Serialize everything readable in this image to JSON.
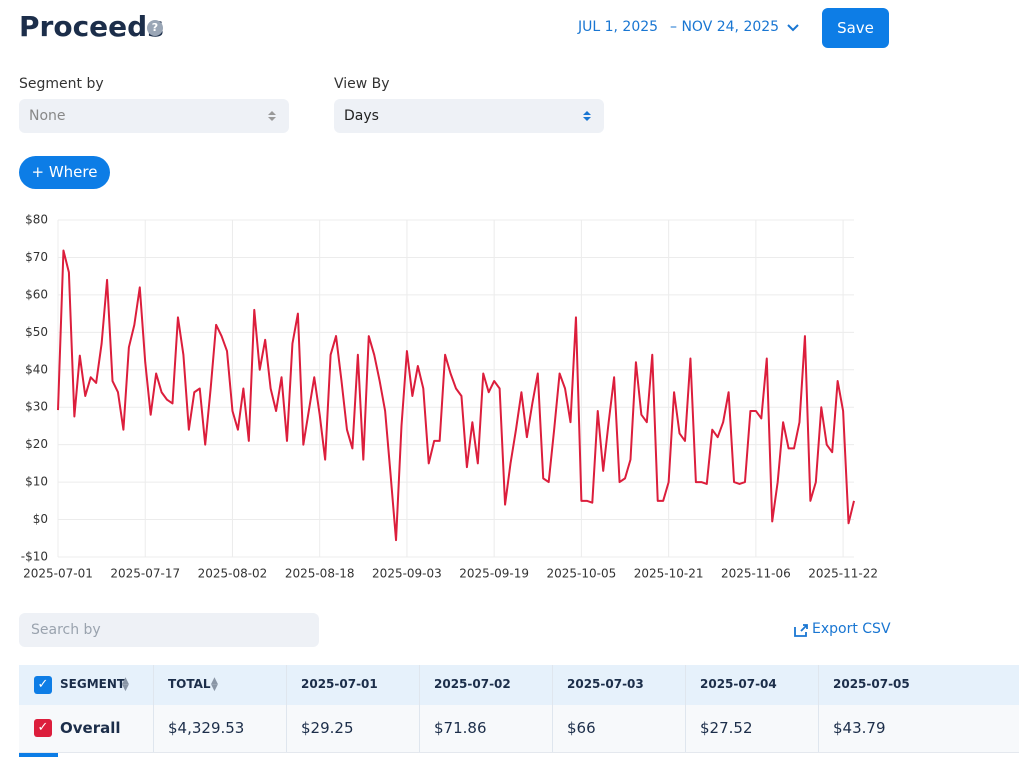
{
  "header": {
    "title": "Proceeds",
    "date_start": "JUL 1, 2025",
    "date_end": "– NOV 24, 2025",
    "save": "Save"
  },
  "filters": {
    "segment_label": "Segment by",
    "segment_value": "None",
    "view_label": "View By",
    "view_value": "Days",
    "where": "+ Where"
  },
  "chart_data": {
    "type": "line",
    "color": "#dc1e3c",
    "grid": true,
    "x": [
      "2025-07-01",
      "2025-07-02",
      "2025-07-03",
      "2025-07-04",
      "2025-07-05",
      "2025-07-06",
      "2025-07-07",
      "2025-07-08",
      "2025-07-09",
      "2025-07-10",
      "2025-07-11",
      "2025-07-12",
      "2025-07-13",
      "2025-07-14",
      "2025-07-15",
      "2025-07-16",
      "2025-07-17",
      "2025-07-18",
      "2025-07-19",
      "2025-07-20",
      "2025-07-21",
      "2025-07-22",
      "2025-07-23",
      "2025-07-24",
      "2025-07-25",
      "2025-07-26",
      "2025-07-27",
      "2025-07-28",
      "2025-07-29",
      "2025-07-30",
      "2025-07-31",
      "2025-08-01",
      "2025-08-02",
      "2025-08-03",
      "2025-08-04",
      "2025-08-05",
      "2025-08-06",
      "2025-08-07",
      "2025-08-08",
      "2025-08-09",
      "2025-08-10",
      "2025-08-11",
      "2025-08-12",
      "2025-08-13",
      "2025-08-14",
      "2025-08-15",
      "2025-08-16",
      "2025-08-17",
      "2025-08-18",
      "2025-08-19",
      "2025-08-20",
      "2025-08-21",
      "2025-08-22",
      "2025-08-23",
      "2025-08-24",
      "2025-08-25",
      "2025-08-26",
      "2025-08-27",
      "2025-08-28",
      "2025-08-29",
      "2025-08-30",
      "2025-08-31",
      "2025-09-01",
      "2025-09-02",
      "2025-09-03",
      "2025-09-04",
      "2025-09-05",
      "2025-09-06",
      "2025-09-07",
      "2025-09-08",
      "2025-09-09",
      "2025-09-10",
      "2025-09-11",
      "2025-09-12",
      "2025-09-13",
      "2025-09-14",
      "2025-09-15",
      "2025-09-16",
      "2025-09-17",
      "2025-09-18",
      "2025-09-19",
      "2025-09-20",
      "2025-09-21",
      "2025-09-22",
      "2025-09-23",
      "2025-09-24",
      "2025-09-25",
      "2025-09-26",
      "2025-09-27",
      "2025-09-28",
      "2025-09-29",
      "2025-09-30",
      "2025-10-01",
      "2025-10-02",
      "2025-10-03",
      "2025-10-04",
      "2025-10-05",
      "2025-10-06",
      "2025-10-07",
      "2025-10-08",
      "2025-10-09",
      "2025-10-10",
      "2025-10-11",
      "2025-10-12",
      "2025-10-13",
      "2025-10-14",
      "2025-10-15",
      "2025-10-16",
      "2025-10-17",
      "2025-10-18",
      "2025-10-19",
      "2025-10-20",
      "2025-10-21",
      "2025-10-22",
      "2025-10-23",
      "2025-10-24",
      "2025-10-25",
      "2025-10-26",
      "2025-10-27",
      "2025-10-28",
      "2025-10-29",
      "2025-10-30",
      "2025-10-31",
      "2025-11-01",
      "2025-11-02",
      "2025-11-03",
      "2025-11-04",
      "2025-11-05",
      "2025-11-06",
      "2025-11-07",
      "2025-11-08",
      "2025-11-09",
      "2025-11-10",
      "2025-11-11",
      "2025-11-12",
      "2025-11-13",
      "2025-11-14",
      "2025-11-15",
      "2025-11-16",
      "2025-11-17",
      "2025-11-18",
      "2025-11-19",
      "2025-11-20",
      "2025-11-21",
      "2025-11-22",
      "2025-11-23",
      "2025-11-24"
    ],
    "values": [
      29.25,
      71.86,
      66,
      27.52,
      43.79,
      33,
      38,
      36.5,
      47,
      64,
      37,
      34,
      24,
      46,
      52,
      62,
      42,
      28,
      39,
      34,
      32,
      31,
      54,
      44,
      24,
      34,
      35,
      20,
      35,
      52,
      49,
      45,
      29,
      24,
      35,
      21,
      56,
      40,
      48,
      35,
      29,
      38,
      21,
      47,
      55,
      20,
      29,
      38,
      28,
      16,
      44,
      49,
      37,
      24,
      19,
      44,
      16,
      49,
      44,
      37,
      29,
      12,
      -5.5,
      25,
      45,
      33,
      41,
      35,
      15,
      21,
      21,
      44,
      39,
      35,
      33,
      14,
      26,
      15,
      39,
      34,
      37,
      35,
      4,
      15,
      24,
      34,
      22,
      31,
      39,
      11,
      10,
      24,
      39,
      35,
      26,
      54,
      5,
      5,
      4.5,
      29,
      13,
      26,
      38,
      10,
      11,
      16,
      42,
      28,
      26,
      44,
      5,
      5,
      10,
      34,
      23,
      21,
      43,
      10,
      10,
      9.5,
      24,
      22,
      26,
      34,
      10,
      9.5,
      10,
      29,
      29,
      27,
      43,
      -0.5,
      10,
      26,
      19,
      19,
      26,
      49,
      5,
      10,
      30,
      20,
      18,
      37,
      29,
      -1,
      5
    ],
    "xlim": [
      "2025-07-01",
      "2025-11-24"
    ],
    "xticks": [
      "2025-07-01",
      "2025-07-17",
      "2025-08-02",
      "2025-08-18",
      "2025-09-03",
      "2025-09-19",
      "2025-10-05",
      "2025-10-21",
      "2025-11-06",
      "2025-11-22"
    ],
    "ylim": [
      -10,
      80
    ],
    "yticks": [
      {
        "value": -10,
        "label": "-$10"
      },
      {
        "value": 0,
        "label": "$0"
      },
      {
        "value": 10,
        "label": "$10"
      },
      {
        "value": 20,
        "label": "$20"
      },
      {
        "value": 30,
        "label": "$30"
      },
      {
        "value": 40,
        "label": "$40"
      },
      {
        "value": 50,
        "label": "$50"
      },
      {
        "value": 60,
        "label": "$60"
      },
      {
        "value": 70,
        "label": "$70"
      },
      {
        "value": 80,
        "label": "$80"
      }
    ]
  },
  "toolbar": {
    "search_placeholder": "Search by",
    "export": "Export CSV"
  },
  "table": {
    "columns": [
      "SEGMENT",
      "TOTAL",
      "2025-07-01",
      "2025-07-02",
      "2025-07-03",
      "2025-07-04",
      "2025-07-05"
    ],
    "rows": [
      [
        "Overall",
        "$4,329.53",
        "$29.25",
        "$71.86",
        "$66",
        "$27.52",
        "$43.79"
      ]
    ]
  }
}
